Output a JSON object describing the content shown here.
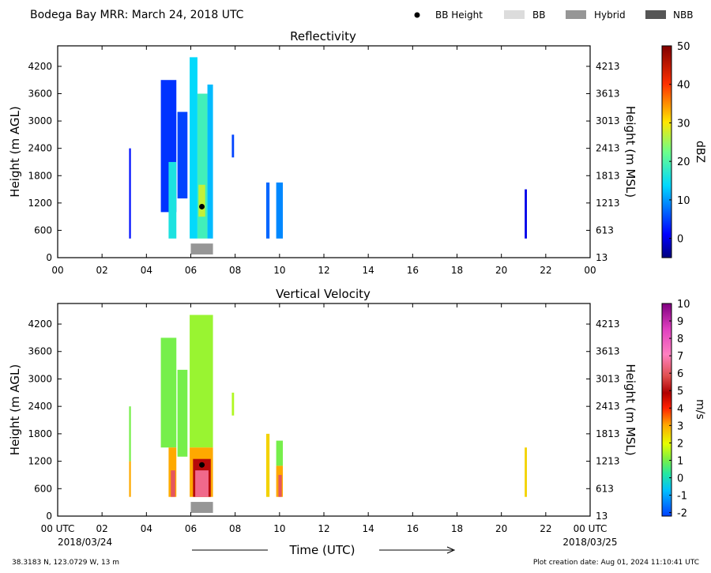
{
  "title": "Bodega Bay MRR:  March 24, 2018 UTC",
  "legend": {
    "placement": "top-right",
    "items": [
      {
        "label": "BB Height",
        "kind": "dot",
        "color": "#000000"
      },
      {
        "label": "BB",
        "kind": "swatch",
        "color": "#dcdcdc"
      },
      {
        "label": "Hybrid",
        "kind": "swatch",
        "color": "#969696"
      },
      {
        "label": "NBB",
        "kind": "swatch",
        "color": "#555555"
      }
    ]
  },
  "x_axis": {
    "ticks": [
      "00",
      "02",
      "04",
      "06",
      "08",
      "10",
      "12",
      "14",
      "16",
      "18",
      "20",
      "22",
      "00"
    ],
    "bottom_ticks": [
      "00 UTC",
      "02",
      "04",
      "06",
      "08",
      "10",
      "12",
      "14",
      "16",
      "18",
      "20",
      "22",
      "00 UTC"
    ],
    "start_date": "2018/03/24",
    "end_date": "2018/03/25",
    "label": "Time (UTC)"
  },
  "footer": {
    "location": "38.3183 N, 123.0729 W, 13 m",
    "created": "Plot creation date: Aug 01, 2024 11:10:41 UTC"
  },
  "chart_data": [
    {
      "type": "heatmap",
      "title": "Reflectivity",
      "ylabel": "Height (m AGL)",
      "ylabel_right": "Height (m MSL)",
      "yticks": [
        0,
        600,
        1200,
        1800,
        2400,
        3000,
        3600,
        4200
      ],
      "yticks_right": [
        "13",
        "613",
        "1213",
        "1813",
        "2413",
        "3013",
        "3613",
        "4213"
      ],
      "xlim": [
        0,
        24
      ],
      "ylim": [
        0,
        4650
      ],
      "colorbar": {
        "label": "dBZ",
        "range": [
          -5,
          50
        ],
        "ticks": [
          0,
          10,
          20,
          30,
          40,
          50
        ]
      },
      "bb_height_points": [
        {
          "t": 6.5,
          "h": 1120
        }
      ],
      "bb_type_bars": [
        {
          "type": "Hybrid",
          "start": 6.0,
          "end": 7.0
        }
      ],
      "echo_columns": [
        {
          "t0": 3.22,
          "t1": 3.3,
          "h0": 420,
          "h1": 2400,
          "v": 2
        },
        {
          "t0": 4.65,
          "t1": 5.35,
          "h0": 1000,
          "h1": 3900,
          "v": 4
        },
        {
          "t0": 5.0,
          "t1": 5.35,
          "h0": 420,
          "h1": 2100,
          "v": 16
        },
        {
          "t0": 5.4,
          "t1": 5.85,
          "h0": 1300,
          "h1": 3200,
          "v": 5
        },
        {
          "t0": 5.95,
          "t1": 6.3,
          "h0": 420,
          "h1": 4400,
          "v": 14
        },
        {
          "t0": 6.3,
          "t1": 6.75,
          "h0": 420,
          "h1": 3600,
          "v": 19
        },
        {
          "t0": 6.35,
          "t1": 6.65,
          "h0": 900,
          "h1": 1600,
          "v": 27
        },
        {
          "t0": 6.75,
          "t1": 7.0,
          "h0": 420,
          "h1": 3800,
          "v": 12
        },
        {
          "t0": 7.85,
          "t1": 7.95,
          "h0": 2200,
          "h1": 2700,
          "v": 5
        },
        {
          "t0": 9.4,
          "t1": 9.55,
          "h0": 420,
          "h1": 1650,
          "v": 7
        },
        {
          "t0": 9.85,
          "t1": 10.15,
          "h0": 420,
          "h1": 1650,
          "v": 9
        },
        {
          "t0": 21.05,
          "t1": 21.15,
          "h0": 420,
          "h1": 1500,
          "v": 0
        }
      ]
    },
    {
      "type": "heatmap",
      "title": "Vertical Velocity",
      "ylabel": "Height (m AGL)",
      "ylabel_right": "Height (m MSL)",
      "yticks": [
        0,
        600,
        1200,
        1800,
        2400,
        3000,
        3600,
        4200
      ],
      "yticks_right": [
        "13",
        "613",
        "1213",
        "1813",
        "2413",
        "3013",
        "3613",
        "4213"
      ],
      "xlim": [
        0,
        24
      ],
      "ylim": [
        0,
        4650
      ],
      "colorbar": {
        "label": "m/s",
        "range": [
          -2.2,
          10
        ],
        "ticks": [
          -2,
          -1,
          0,
          1,
          2,
          3,
          4,
          5,
          6,
          7,
          8,
          9,
          10
        ]
      },
      "bb_height_points": [
        {
          "t": 6.5,
          "h": 1120
        }
      ],
      "bb_type_bars": [
        {
          "type": "Hybrid",
          "start": 6.0,
          "end": 7.0
        }
      ],
      "echo_columns": [
        {
          "t0": 3.22,
          "t1": 3.3,
          "h0": 1200,
          "h1": 2400,
          "v": 1
        },
        {
          "t0": 3.22,
          "t1": 3.3,
          "h0": 420,
          "h1": 1200,
          "v": 3
        },
        {
          "t0": 4.65,
          "t1": 5.35,
          "h0": 1500,
          "h1": 3900,
          "v": 1
        },
        {
          "t0": 5.0,
          "t1": 5.35,
          "h0": 420,
          "h1": 1500,
          "v": 3
        },
        {
          "t0": 5.1,
          "t1": 5.3,
          "h0": 420,
          "h1": 1000,
          "v": 6
        },
        {
          "t0": 5.4,
          "t1": 5.85,
          "h0": 1300,
          "h1": 3200,
          "v": 1
        },
        {
          "t0": 5.95,
          "t1": 7.0,
          "h0": 1500,
          "h1": 4400,
          "v": 1.3
        },
        {
          "t0": 5.95,
          "t1": 7.0,
          "h0": 420,
          "h1": 1500,
          "v": 3
        },
        {
          "t0": 6.1,
          "t1": 6.9,
          "h0": 420,
          "h1": 1250,
          "v": 5
        },
        {
          "t0": 6.2,
          "t1": 6.8,
          "h0": 420,
          "h1": 1000,
          "v": 6.5
        },
        {
          "t0": 7.85,
          "t1": 7.95,
          "h0": 2200,
          "h1": 2700,
          "v": 1.5
        },
        {
          "t0": 9.4,
          "t1": 9.55,
          "h0": 420,
          "h1": 1800,
          "v": 2.5
        },
        {
          "t0": 9.85,
          "t1": 10.15,
          "h0": 1100,
          "h1": 1650,
          "v": 1
        },
        {
          "t0": 9.85,
          "t1": 10.15,
          "h0": 420,
          "h1": 1100,
          "v": 3
        },
        {
          "t0": 9.95,
          "t1": 10.1,
          "h0": 420,
          "h1": 900,
          "v": 6
        },
        {
          "t0": 21.05,
          "t1": 21.15,
          "h0": 420,
          "h1": 1500,
          "v": 2.5
        }
      ]
    }
  ]
}
